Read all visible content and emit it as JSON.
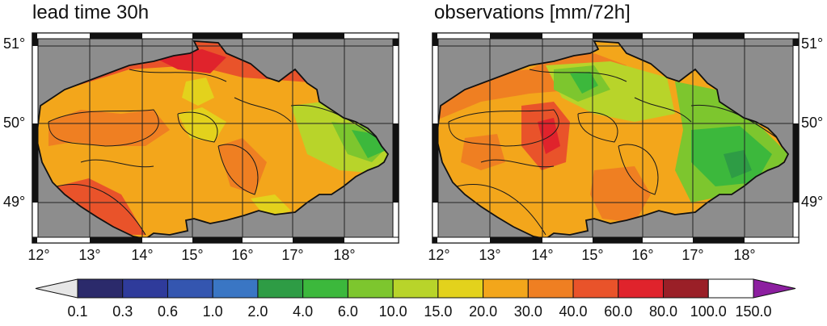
{
  "panels": [
    {
      "title": "lead time 30h",
      "id": "forecast"
    },
    {
      "title": "observations [mm/72h]",
      "id": "observations"
    }
  ],
  "latitude_labels": [
    "51°",
    "50°",
    "49°"
  ],
  "longitude_labels": [
    "12°",
    "13°",
    "14°",
    "15°",
    "16°",
    "17°",
    "18°"
  ],
  "colorbar": {
    "labels": [
      "0.1",
      "0.3",
      "0.6",
      "1.0",
      "2.0",
      "4.0",
      "6.0",
      "10.0",
      "15.0",
      "20.0",
      "30.0",
      "40.0",
      "60.0",
      "80.0",
      "100.0",
      "150.0"
    ],
    "colors": [
      "#2b2a6b",
      "#2f3b9b",
      "#3456b0",
      "#3a76c4",
      "#2e9c45",
      "#3cb83c",
      "#7dc62e",
      "#b8d42a",
      "#e3d21c",
      "#f3a61b",
      "#ef7f22",
      "#e9532a",
      "#e0232c",
      "#9a1f27",
      "#ffffff"
    ],
    "under_color": "#e6e6e6",
    "over_color": "#8c1fa0"
  },
  "colors": {
    "ocean_gray": "#8d8d8d",
    "grid": "#222222"
  }
}
